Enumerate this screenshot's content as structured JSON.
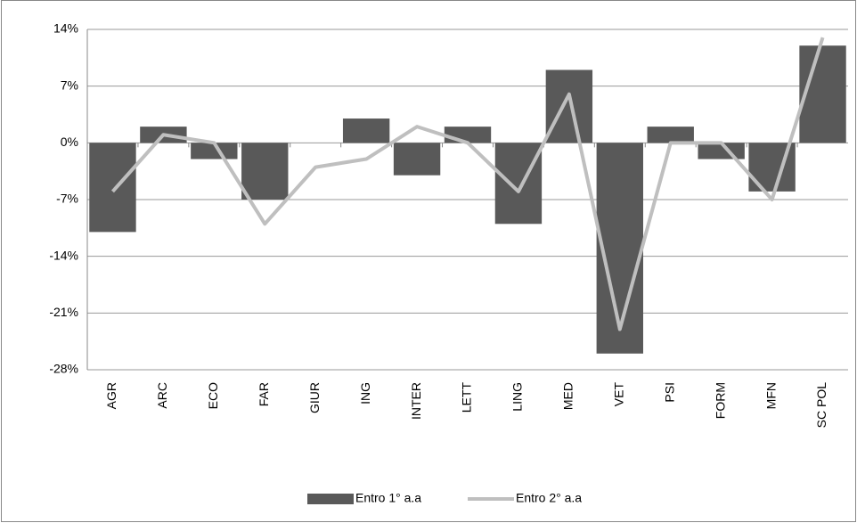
{
  "chart_data": {
    "type": "bar-line",
    "categories": [
      "AGR",
      "ARC",
      "ECO",
      "FAR",
      "GIUR",
      "ING",
      "INTER",
      "LETT",
      "LING",
      "MED",
      "VET",
      "PSI",
      "FORM",
      "MFN",
      "SC POL"
    ],
    "series": [
      {
        "name": "Entro 1° a.a",
        "type": "bar",
        "color": "#595959",
        "values": [
          -11,
          2,
          -2,
          -7,
          0,
          3,
          -4,
          2,
          -10,
          9,
          -26,
          2,
          -2,
          -6,
          12
        ]
      },
      {
        "name": "Entro 2° a.a",
        "type": "line",
        "color": "#bfbfbf",
        "values": [
          -6,
          1,
          0,
          -10,
          -3,
          -2,
          2,
          0,
          -6,
          6,
          -23,
          0,
          0,
          -7,
          13
        ]
      }
    ],
    "ylim": [
      -28,
      14
    ],
    "yticks": [
      {
        "value": -28,
        "label": "-28%"
      },
      {
        "value": -21,
        "label": "-21%"
      },
      {
        "value": -14,
        "label": "-14%"
      },
      {
        "value": -7,
        "label": "-7%"
      },
      {
        "value": 0,
        "label": "0%"
      },
      {
        "value": 7,
        "label": "7%"
      },
      {
        "value": 14,
        "label": "14%"
      }
    ],
    "grid": true,
    "legend": "bottom"
  }
}
